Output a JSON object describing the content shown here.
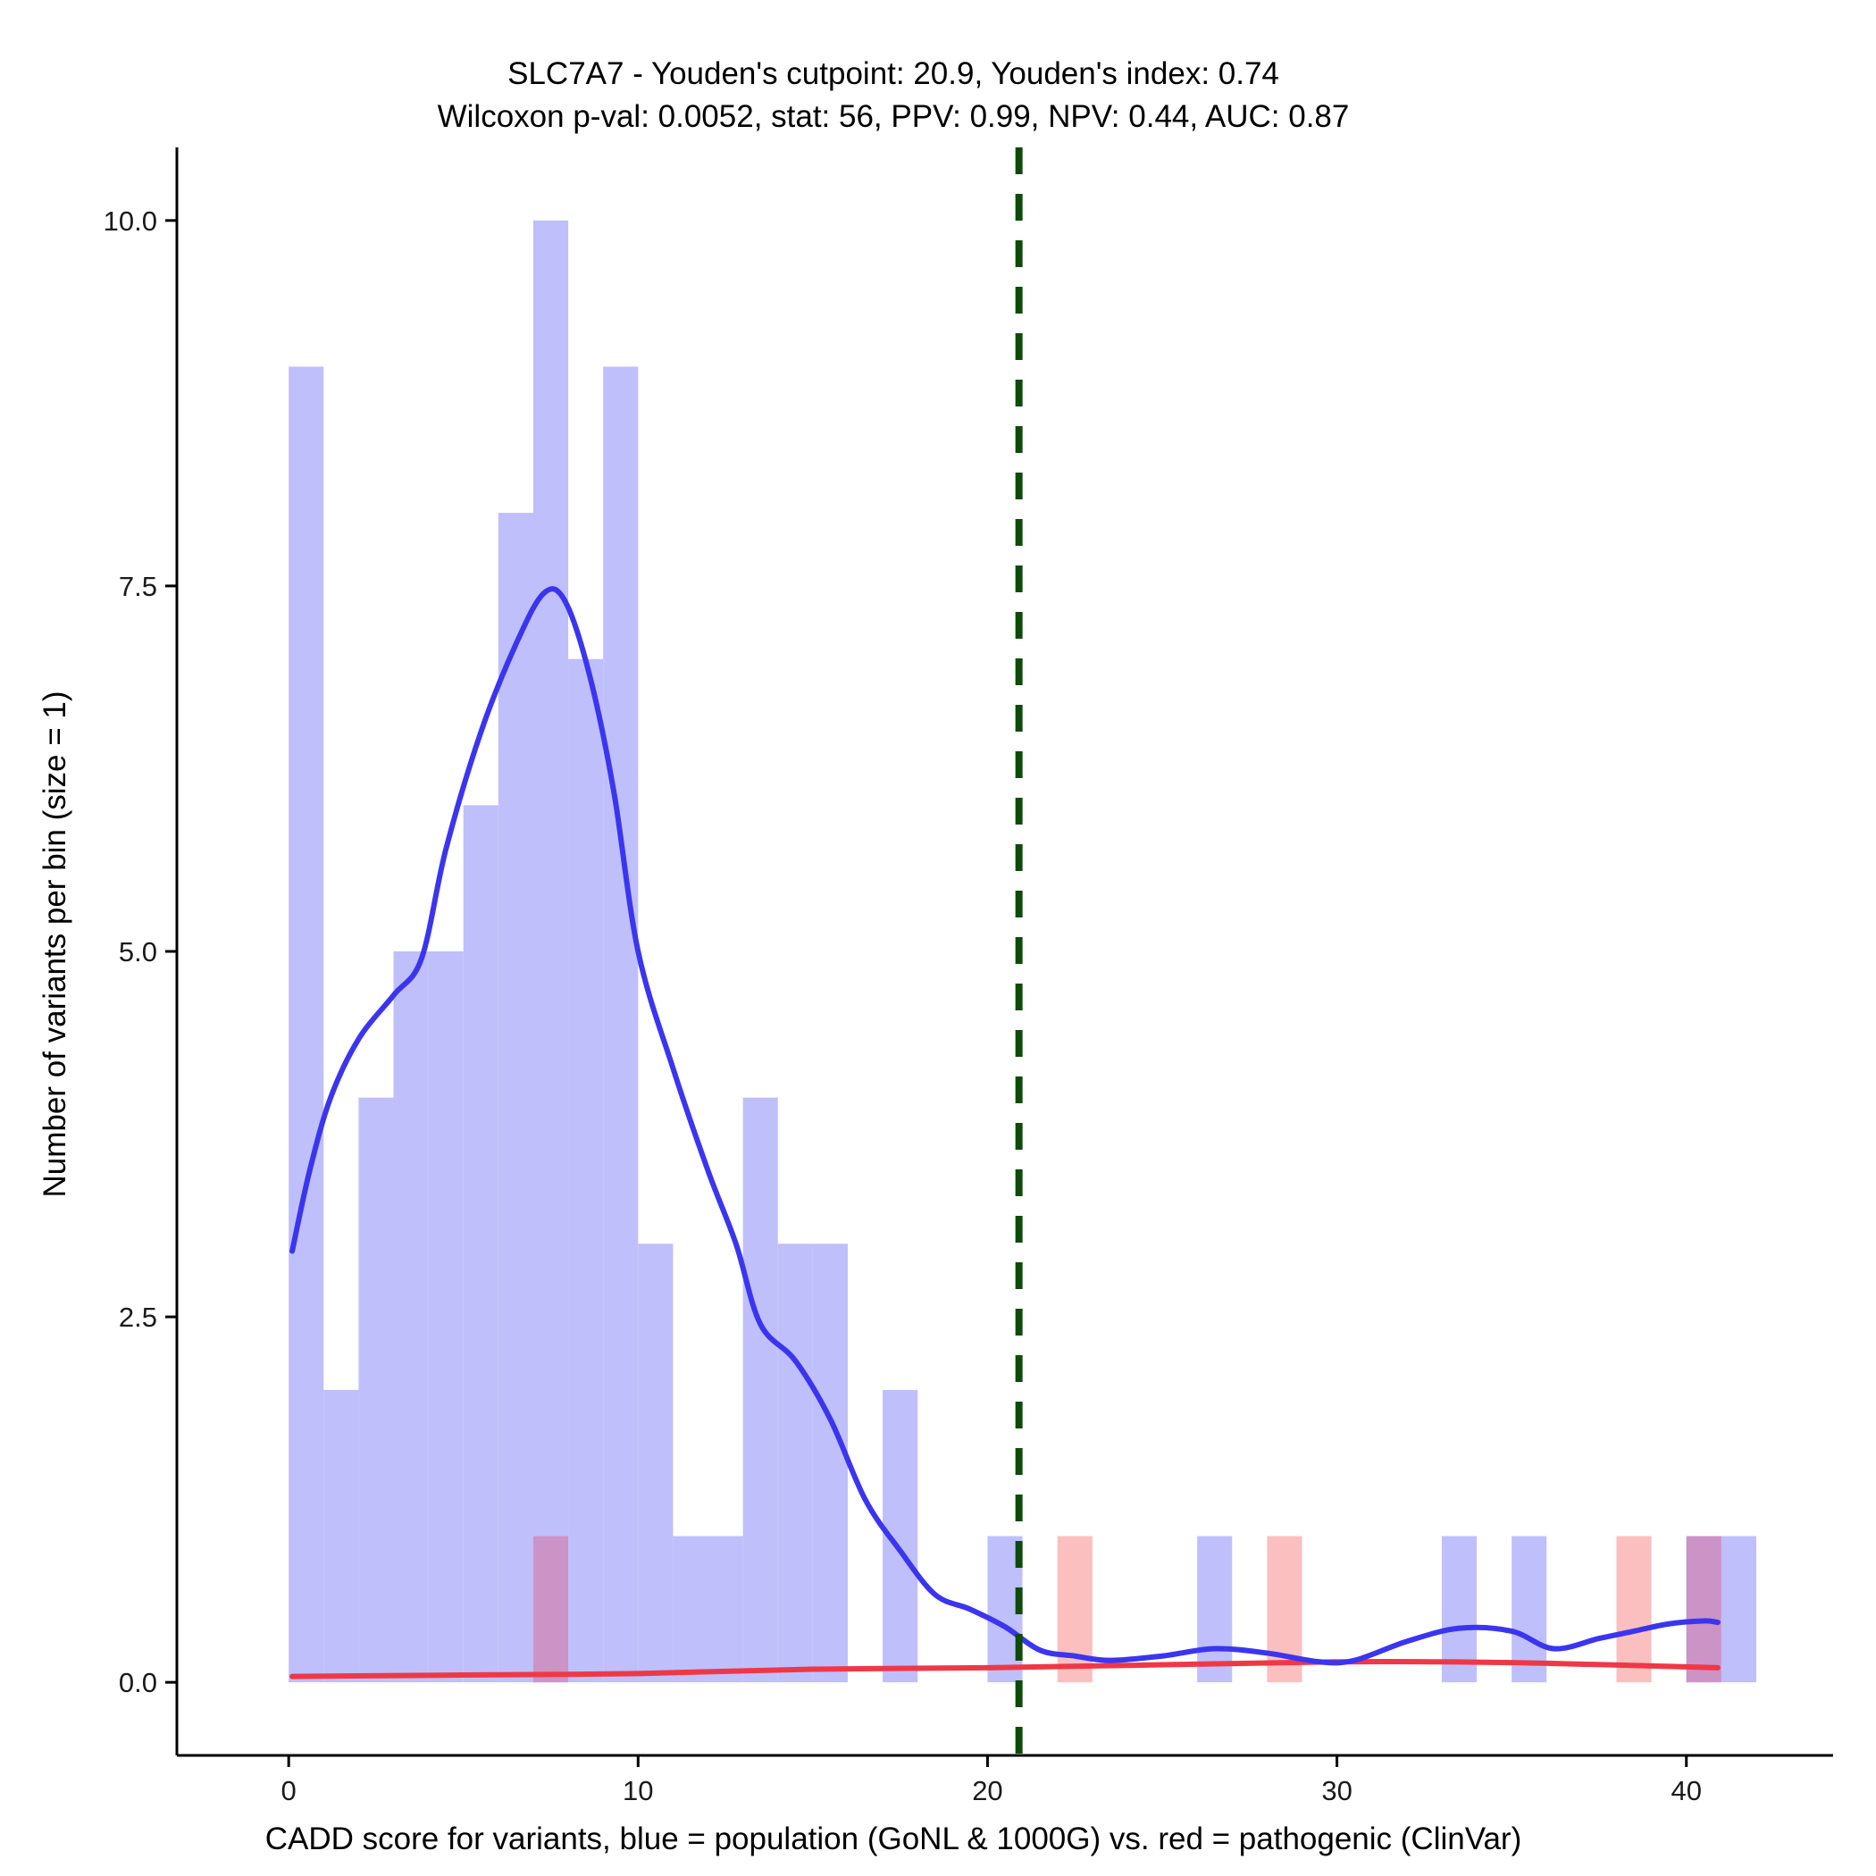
{
  "chart_data": {
    "type": "bar",
    "title_line1": "SLC7A7 - Youden's cutpoint: 20.9, Youden's index: 0.74",
    "title_line2": "Wilcoxon p-val: 0.0052, stat: 56, PPV: 0.99, NPV: 0.44, AUC: 0.87",
    "xlabel": "CADD score for variants, blue = population (GoNL & 1000G) vs. red = pathogenic (ClinVar)",
    "ylabel": "Number of variants per bin (size = 1)",
    "xlim": [
      -3.2,
      44.2
    ],
    "ylim": [
      -0.5,
      10.5
    ],
    "x_ticks": [
      0,
      10,
      20,
      30,
      40
    ],
    "x_tick_labels": [
      "0",
      "10",
      "20",
      "30",
      "40"
    ],
    "y_ticks": [
      0,
      2.5,
      5,
      7.5,
      10
    ],
    "y_tick_labels": [
      "0.0",
      "2.5",
      "5.0",
      "7.5",
      "10.0"
    ],
    "bin_size": 1,
    "cutpoint": 20.9,
    "colors": {
      "population_bar": "#bfbffb",
      "pathogenic_bar": "#fbbfbf",
      "overlap_bar": "#cc93c6",
      "population_line": "#3b35f0",
      "pathogenic_line": "#ef3847",
      "cutpoint_line": "#0f4a0b"
    },
    "series": [
      {
        "name": "population (GoNL & 1000G)",
        "bins": [
          {
            "x": 0,
            "count": 9
          },
          {
            "x": 1,
            "count": 2
          },
          {
            "x": 2,
            "count": 4
          },
          {
            "x": 3,
            "count": 5
          },
          {
            "x": 4,
            "count": 5
          },
          {
            "x": 5,
            "count": 6
          },
          {
            "x": 6,
            "count": 8
          },
          {
            "x": 7,
            "count": 10
          },
          {
            "x": 8,
            "count": 7
          },
          {
            "x": 9,
            "count": 9
          },
          {
            "x": 10,
            "count": 3
          },
          {
            "x": 11,
            "count": 1
          },
          {
            "x": 12,
            "count": 1
          },
          {
            "x": 13,
            "count": 4
          },
          {
            "x": 14,
            "count": 3
          },
          {
            "x": 15,
            "count": 3
          },
          {
            "x": 17,
            "count": 2
          },
          {
            "x": 20,
            "count": 1
          },
          {
            "x": 26,
            "count": 1
          },
          {
            "x": 33,
            "count": 1
          },
          {
            "x": 35,
            "count": 1
          },
          {
            "x": 40,
            "count": 1
          },
          {
            "x": 41,
            "count": 1
          }
        ],
        "density_curve": [
          [
            0.1,
            2.95
          ],
          [
            0.6,
            3.5
          ],
          [
            1.2,
            4.0
          ],
          [
            2.0,
            4.4
          ],
          [
            3.0,
            4.7
          ],
          [
            3.8,
            4.95
          ],
          [
            4.5,
            5.7
          ],
          [
            5.5,
            6.5
          ],
          [
            6.5,
            7.1
          ],
          [
            7.3,
            7.45
          ],
          [
            7.9,
            7.4
          ],
          [
            8.6,
            6.9
          ],
          [
            9.3,
            6.1
          ],
          [
            10.0,
            5.0
          ],
          [
            11.0,
            4.2
          ],
          [
            12.0,
            3.5
          ],
          [
            12.8,
            3.0
          ],
          [
            13.5,
            2.45
          ],
          [
            14.5,
            2.2
          ],
          [
            15.5,
            1.8
          ],
          [
            16.5,
            1.25
          ],
          [
            17.5,
            0.9
          ],
          [
            18.5,
            0.6
          ],
          [
            19.5,
            0.5
          ],
          [
            20.5,
            0.38
          ],
          [
            21.5,
            0.22
          ],
          [
            22.5,
            0.18
          ],
          [
            23.5,
            0.15
          ],
          [
            25.0,
            0.18
          ],
          [
            26.5,
            0.23
          ],
          [
            28.0,
            0.2
          ],
          [
            29.5,
            0.14
          ],
          [
            30.5,
            0.15
          ],
          [
            32.0,
            0.28
          ],
          [
            33.5,
            0.37
          ],
          [
            35.0,
            0.35
          ],
          [
            36.2,
            0.23
          ],
          [
            37.5,
            0.3
          ],
          [
            38.5,
            0.35
          ],
          [
            39.5,
            0.4
          ],
          [
            40.5,
            0.42
          ],
          [
            40.9,
            0.41
          ]
        ]
      },
      {
        "name": "pathogenic (ClinVar)",
        "bins": [
          {
            "x": 7,
            "count": 1
          },
          {
            "x": 22,
            "count": 1
          },
          {
            "x": 28,
            "count": 1
          },
          {
            "x": 38,
            "count": 1
          },
          {
            "x": 40,
            "count": 1
          }
        ],
        "density_curve": [
          [
            0.1,
            0.04
          ],
          [
            5.0,
            0.05
          ],
          [
            10.0,
            0.06
          ],
          [
            15.0,
            0.09
          ],
          [
            20.0,
            0.1
          ],
          [
            25.0,
            0.12
          ],
          [
            30.0,
            0.14
          ],
          [
            33.0,
            0.14
          ],
          [
            36.0,
            0.13
          ],
          [
            40.9,
            0.1
          ]
        ]
      }
    ]
  }
}
